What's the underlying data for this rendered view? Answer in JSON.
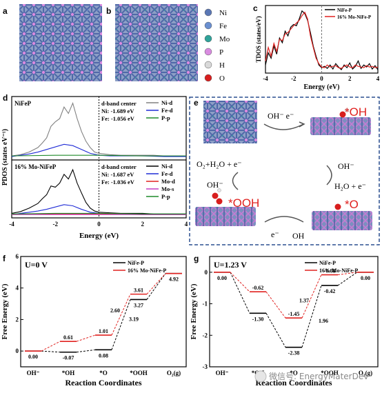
{
  "panel_labels": {
    "a": "a",
    "b": "b",
    "c": "c",
    "d": "d",
    "e": "e",
    "f": "f",
    "g": "g"
  },
  "legend_atoms": [
    {
      "symbol": "Ni",
      "color": "#5a77b5"
    },
    {
      "symbol": "Fe",
      "color": "#6a8fd0"
    },
    {
      "symbol": "Mo",
      "color": "#2fa39a"
    },
    {
      "symbol": "P",
      "color": "#d98be0"
    },
    {
      "symbol": "H",
      "color": "#d9d9d9"
    },
    {
      "symbol": "O",
      "color": "#d81e1e"
    }
  ],
  "colors": {
    "nife": "#000000",
    "mo": "#e0211f",
    "fe_d": "#1f2bd6",
    "p_p": "#1e8a2a",
    "mo_s": "#c43cc4",
    "accent_red": "#e0211f"
  },
  "chart_data": [
    {
      "id": "c",
      "type": "line",
      "ylabel": "TDOS (states/eV)",
      "xlabel": "Energy (eV)",
      "xlim": [
        -4,
        4
      ],
      "x_ticks": [
        "-4",
        "-2",
        "0",
        "2",
        "4"
      ],
      "ylim": [
        0,
        100
      ],
      "legend": [
        "NiFe-P",
        "16% Mo-NiFe-P"
      ],
      "series": [
        {
          "name": "NiFe-P",
          "x": [
            -4,
            -3.8,
            -3.6,
            -3.4,
            -3.2,
            -3.0,
            -2.8,
            -2.6,
            -2.4,
            -2.2,
            -2.0,
            -1.8,
            -1.6,
            -1.4,
            -1.2,
            -1.0,
            -0.8,
            -0.6,
            -0.4,
            -0.2,
            0,
            0.2,
            0.4,
            0.6,
            0.8,
            1.0,
            1.2,
            1.4,
            1.6,
            1.8,
            2.0,
            2.2,
            2.4,
            2.6,
            2.8,
            3.0,
            3.2,
            3.4,
            3.6,
            3.8,
            4.0
          ],
          "y": [
            12,
            30,
            22,
            40,
            28,
            52,
            45,
            62,
            55,
            68,
            72,
            70,
            80,
            92,
            88,
            78,
            60,
            40,
            25,
            12,
            8,
            10,
            7,
            12,
            6,
            14,
            9,
            5,
            12,
            8,
            15,
            6,
            10,
            18,
            7,
            12,
            9,
            14,
            6,
            11,
            5
          ]
        },
        {
          "name": "16% Mo-NiFe-P",
          "x": [
            -4,
            -3.8,
            -3.6,
            -3.4,
            -3.2,
            -3.0,
            -2.8,
            -2.6,
            -2.4,
            -2.2,
            -2.0,
            -1.8,
            -1.6,
            -1.4,
            -1.2,
            -1.0,
            -0.8,
            -0.6,
            -0.4,
            -0.2,
            0,
            0.2,
            0.4,
            0.6,
            0.8,
            1.0,
            1.2,
            1.4,
            1.6,
            1.8,
            2.0,
            2.2,
            2.4,
            2.6,
            2.8,
            3.0,
            3.2,
            3.4,
            3.6,
            3.8,
            4.0
          ],
          "y": [
            18,
            38,
            25,
            44,
            32,
            50,
            48,
            58,
            60,
            65,
            70,
            74,
            78,
            85,
            90,
            80,
            55,
            38,
            22,
            14,
            9,
            8,
            12,
            9,
            10,
            11,
            8,
            7,
            10,
            12,
            9,
            8,
            12,
            10,
            9,
            8,
            11,
            9,
            10,
            8,
            9
          ]
        }
      ]
    },
    {
      "id": "d",
      "type": "line",
      "ylabel": "PDOS (states eV⁻¹)",
      "xlabel": "Energy (eV)",
      "xlim": [
        -4,
        4
      ],
      "x_ticks": [
        "-4",
        "-2",
        "0",
        "2",
        "4"
      ],
      "top": {
        "title": "NiFeP",
        "dband_title": "d-band center",
        "dband_ni": "Ni: -1.689 eV",
        "dband_fe": "Fe: -1.056 eV",
        "series": [
          {
            "name": "Ni-d",
            "color": "#808080",
            "x": [
              -4,
              -3.6,
              -3.2,
              -2.8,
              -2.6,
              -2.4,
              -2.2,
              -2.0,
              -1.8,
              -1.6,
              -1.4,
              -1.2,
              -1.0,
              -0.8,
              -0.6,
              -0.4,
              -0.2,
              0,
              0.5,
              1,
              1.5,
              2,
              2.5,
              3,
              3.5,
              4
            ],
            "y": [
              2,
              4,
              8,
              15,
              22,
              30,
              48,
              55,
              60,
              78,
              68,
              84,
              60,
              40,
              25,
              15,
              8,
              6,
              4,
              3,
              3,
              3,
              3,
              2,
              2,
              2
            ]
          },
          {
            "name": "Fe-d",
            "color": "#1f2bd6",
            "x": [
              -4,
              -3.6,
              -3.2,
              -2.8,
              -2.4,
              -2.0,
              -1.6,
              -1.2,
              -0.8,
              -0.4,
              0,
              0.5,
              1,
              2,
              3,
              4
            ],
            "y": [
              1,
              3,
              5,
              8,
              12,
              16,
              20,
              18,
              12,
              6,
              3,
              2,
              2,
              2,
              1,
              1
            ]
          },
          {
            "name": "P-p",
            "color": "#1e8a2a",
            "x": [
              -4,
              -2,
              0,
              2,
              4
            ],
            "y": [
              2,
              3,
              3,
              2,
              2
            ]
          }
        ]
      },
      "bottom": {
        "title": "16% Mo-NiFeP",
        "dband_title": "d-band center",
        "dband_ni": "Ni: -1.687 eV",
        "dband_fe": "Fe: -1.036 eV",
        "series": [
          {
            "name": "Ni-d",
            "color": "#000000",
            "x": [
              -4,
              -3.6,
              -3.2,
              -2.8,
              -2.6,
              -2.4,
              -2.2,
              -2.0,
              -1.8,
              -1.6,
              -1.4,
              -1.2,
              -1.0,
              -0.8,
              -0.6,
              -0.4,
              -0.2,
              0,
              0.5,
              1,
              1.5,
              2,
              2.5,
              3,
              3.5,
              4
            ],
            "y": [
              3,
              6,
              12,
              20,
              28,
              35,
              50,
              48,
              55,
              70,
              62,
              78,
              55,
              38,
              22,
              12,
              7,
              5,
              4,
              3,
              3,
              3,
              2,
              2,
              2,
              2
            ]
          },
          {
            "name": "Fe-d",
            "color": "#1f2bd6",
            "x": [
              -4,
              -3.6,
              -3.2,
              -2.8,
              -2.4,
              -2.0,
              -1.6,
              -1.2,
              -0.8,
              -0.4,
              0,
              0.5,
              1,
              2,
              3,
              4
            ],
            "y": [
              1,
              3,
              5,
              7,
              10,
              14,
              18,
              16,
              10,
              5,
              3,
              2,
              2,
              1,
              1,
              1
            ]
          },
          {
            "name": "Mo-d",
            "color": "#e0211f",
            "x": [
              -4,
              -2,
              0,
              2,
              4
            ],
            "y": [
              1,
              2,
              2,
              1,
              1
            ]
          },
          {
            "name": "Mo-s",
            "color": "#c43cc4",
            "x": [
              -4,
              -2,
              0,
              2,
              4
            ],
            "y": [
              1,
              1,
              1,
              1,
              1
            ]
          },
          {
            "name": "P-p",
            "color": "#1e8a2a",
            "x": [
              -4,
              -2,
              0,
              2,
              4
            ],
            "y": [
              2,
              3,
              3,
              2,
              2
            ]
          }
        ]
      }
    },
    {
      "id": "f",
      "type": "line",
      "title": "U=0 V",
      "ylabel": "Free Energy (eV)",
      "xlabel": "Reaction Coordinates",
      "categories": [
        "OH⁻",
        "*OH",
        "*O",
        "*OOH",
        "O₂(g)"
      ],
      "ylim": [
        -1,
        6
      ],
      "y_ticks": [
        "0",
        "2",
        "4",
        "6"
      ],
      "legend": [
        "NiFe-P",
        "16% Mo-NiFe-P"
      ],
      "series": [
        {
          "name": "NiFe-P",
          "values": [
            0.0,
            -0.07,
            0.08,
            3.27,
            4.92
          ],
          "labels": [
            "0.00",
            "-0.07",
            "0.08",
            "3.27",
            "4.92"
          ]
        },
        {
          "name": "16% Mo-NiFe-P",
          "values": [
            0.0,
            0.61,
            1.01,
            3.61,
            4.92
          ],
          "labels": [
            "",
            "0.61",
            "1.01",
            "3.61",
            ""
          ]
        }
      ],
      "step_labels": {
        "nife": [
          "3.19"
        ],
        "mo": [
          "2.60"
        ]
      }
    },
    {
      "id": "g",
      "type": "line",
      "title": "U=1.23 V",
      "ylabel": "Free Energy (eV)",
      "xlabel": "Reaction Coordinates",
      "categories": [
        "OH⁻",
        "*OH",
        "*O",
        "*OOH",
        "O₂(g)"
      ],
      "ylim": [
        -3,
        0.5
      ],
      "y_ticks": [
        "-3",
        "-2",
        "-1",
        "0"
      ],
      "legend": [
        "NiFe-P",
        "16% Mo-NiFe-P"
      ],
      "series": [
        {
          "name": "NiFe-P",
          "values": [
            0.0,
            -1.3,
            -2.38,
            -0.42,
            0.0
          ],
          "labels": [
            "0.00",
            "-1.30",
            "-2.38",
            "-0.42",
            "0.00"
          ]
        },
        {
          "name": "16% Mo-NiFe-P",
          "values": [
            0.0,
            -0.62,
            -1.45,
            -0.08,
            0.0
          ],
          "labels": [
            "",
            "-0.62",
            "-1.45",
            "-0.08",
            ""
          ]
        }
      ],
      "step_labels": {
        "nife": [
          "1.96"
        ],
        "mo": [
          "1.37"
        ]
      }
    }
  ],
  "scheme_e": {
    "oh_e_top": "OH⁻  e⁻",
    "star_oh": "*OH",
    "o2_h2o_e": "O₂+H₂O + e⁻",
    "oh_left": "OH⁻",
    "oh_right": "OH⁻",
    "h2o_e": "H₂O + e⁻",
    "star_ooh": "*OOH",
    "star_o": "*O",
    "e_bottom": "e⁻",
    "oh_bottom": "OH"
  },
  "watermark": "微信号: EnergyMaterDev"
}
